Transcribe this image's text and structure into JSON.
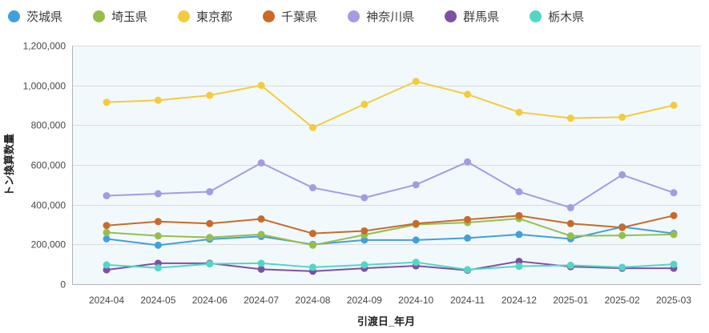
{
  "legend": {
    "note": "series legend rendered from chart_data.series"
  },
  "axes": {
    "y_label": "トン換算数量",
    "x_label": "引渡日_年月"
  },
  "chart_data": {
    "type": "line",
    "categories": [
      "2024-04",
      "2024-05",
      "2024-06",
      "2024-07",
      "2024-08",
      "2024-09",
      "2024-10",
      "2024-11",
      "2024-12",
      "2025-01",
      "2025-02",
      "2025-03"
    ],
    "series": [
      {
        "name": "茨城県",
        "color": "#41A0DB",
        "values": [
          228000,
          196000,
          226000,
          240000,
          200000,
          222000,
          222000,
          232000,
          250000,
          228000,
          288000,
          255000
        ]
      },
      {
        "name": "埼玉県",
        "color": "#96BE4B",
        "values": [
          260000,
          243000,
          235000,
          250000,
          196000,
          248000,
          300000,
          310000,
          330000,
          243000,
          245000,
          250000
        ]
      },
      {
        "name": "東京都",
        "color": "#F4CB3F",
        "values": [
          915000,
          925000,
          950000,
          1000000,
          788000,
          905000,
          1020000,
          955000,
          865000,
          835000,
          840000,
          900000
        ]
      },
      {
        "name": "千葉県",
        "color": "#C96A28",
        "values": [
          295000,
          315000,
          305000,
          328000,
          255000,
          268000,
          305000,
          325000,
          345000,
          305000,
          285000,
          345000
        ]
      },
      {
        "name": "神奈川県",
        "color": "#A49BE3",
        "values": [
          445000,
          455000,
          465000,
          610000,
          485000,
          435000,
          500000,
          615000,
          465000,
          385000,
          550000,
          460000
        ]
      },
      {
        "name": "群馬県",
        "color": "#7F4FA5",
        "values": [
          72000,
          105000,
          105000,
          75000,
          65000,
          80000,
          92000,
          70000,
          115000,
          88000,
          80000,
          80000
        ]
      },
      {
        "name": "栃木県",
        "color": "#53D6C5",
        "values": [
          97000,
          82000,
          102000,
          105000,
          85000,
          97000,
          110000,
          73000,
          90000,
          95000,
          85000,
          100000
        ]
      }
    ],
    "ylim": [
      0,
      1200000
    ],
    "ytick_step": 200000,
    "ytick_labels": [
      "0",
      "200,000",
      "400,000",
      "600,000",
      "800,000",
      "1,000,000",
      "1,200,000"
    ],
    "grid": true,
    "legend_position": "top",
    "plot_background": "#F2F9FD",
    "grid_color": "#DADADA",
    "axis_line_color": "#B3B3B3",
    "marker_radius": 4.5,
    "line_width": 2
  }
}
